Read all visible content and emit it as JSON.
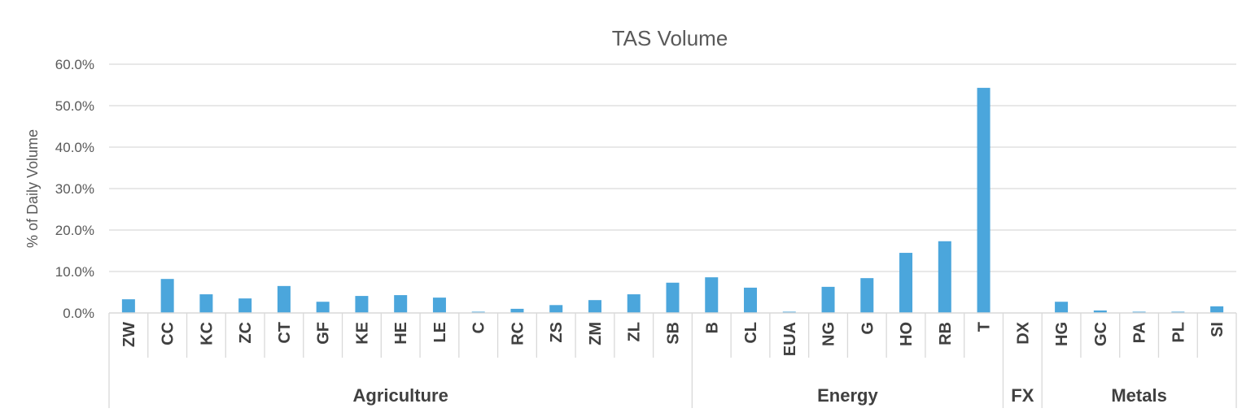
{
  "chart_data": {
    "type": "bar",
    "title": "TAS Volume",
    "ylabel": "% of Daily Volume",
    "xlabel": "",
    "ylim": [
      0,
      60
    ],
    "yticks": [
      "0.0%",
      "10.0%",
      "20.0%",
      "30.0%",
      "40.0%",
      "50.0%",
      "60.0%"
    ],
    "ytick_values": [
      0,
      10,
      20,
      30,
      40,
      50,
      60
    ],
    "grid": true,
    "bar_color": "#4BA6DC",
    "categories": [
      "ZW",
      "CC",
      "KC",
      "ZC",
      "CT",
      "GF",
      "KE",
      "HE",
      "LE",
      "C",
      "RC",
      "ZS",
      "ZM",
      "ZL",
      "SB",
      "B",
      "CL",
      "EUA",
      "NG",
      "G",
      "HO",
      "RB",
      "T",
      "DX",
      "HG",
      "GC",
      "PA",
      "PL",
      "SI"
    ],
    "values": [
      3.3,
      8.2,
      4.5,
      3.5,
      6.5,
      2.7,
      4.1,
      4.3,
      3.7,
      0.3,
      1.0,
      1.9,
      3.1,
      4.5,
      7.3,
      8.6,
      6.1,
      0.3,
      6.3,
      8.4,
      14.5,
      17.3,
      54.3,
      0.0,
      2.7,
      0.6,
      0.3,
      0.3,
      1.6
    ],
    "groups": [
      {
        "name": "Agriculture",
        "start": 0,
        "end": 14
      },
      {
        "name": "Energy",
        "start": 15,
        "end": 22
      },
      {
        "name": "FX",
        "start": 23,
        "end": 23
      },
      {
        "name": "Metals",
        "start": 24,
        "end": 28
      }
    ]
  }
}
